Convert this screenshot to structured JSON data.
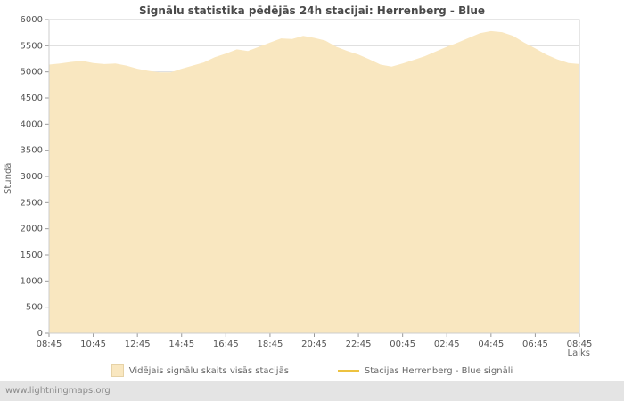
{
  "footer": {
    "watermark": "www.lightningmaps.org"
  },
  "chart_data": {
    "type": "area",
    "title": "Signālu statistika pēdējās 24h stacijai: Herrenberg - Blue",
    "xlabel": "Laiks",
    "ylabel": "Stundā",
    "ylim": [
      0,
      6000
    ],
    "y_ticks": [
      0,
      500,
      1000,
      1500,
      2000,
      2500,
      3000,
      3500,
      4000,
      4500,
      5000,
      5500,
      6000
    ],
    "x_tick_labels": [
      "08:45",
      "10:45",
      "12:45",
      "14:45",
      "16:45",
      "18:45",
      "20:45",
      "22:45",
      "00:45",
      "02:45",
      "04:45",
      "06:45",
      "08:45"
    ],
    "grid": "horizontal",
    "legend_position": "bottom",
    "series": [
      {
        "name": "Vidējais signālu skaits visās stacijās",
        "type": "area",
        "color": "#f9e7c0",
        "x_step_hours": 0.5,
        "values": [
          5140,
          5160,
          5190,
          5210,
          5170,
          5150,
          5160,
          5120,
          5060,
          5020,
          4990,
          4990,
          5060,
          5120,
          5180,
          5280,
          5350,
          5430,
          5400,
          5480,
          5560,
          5640,
          5630,
          5690,
          5650,
          5600,
          5480,
          5400,
          5330,
          5240,
          5140,
          5100,
          5160,
          5230,
          5300,
          5390,
          5480,
          5560,
          5650,
          5740,
          5780,
          5760,
          5690,
          5560,
          5450,
          5330,
          5240,
          5170,
          5150
        ]
      },
      {
        "name": "Stacijas Herrenberg - Blue signāli",
        "type": "line",
        "color": "#edc240",
        "values": []
      }
    ]
  }
}
